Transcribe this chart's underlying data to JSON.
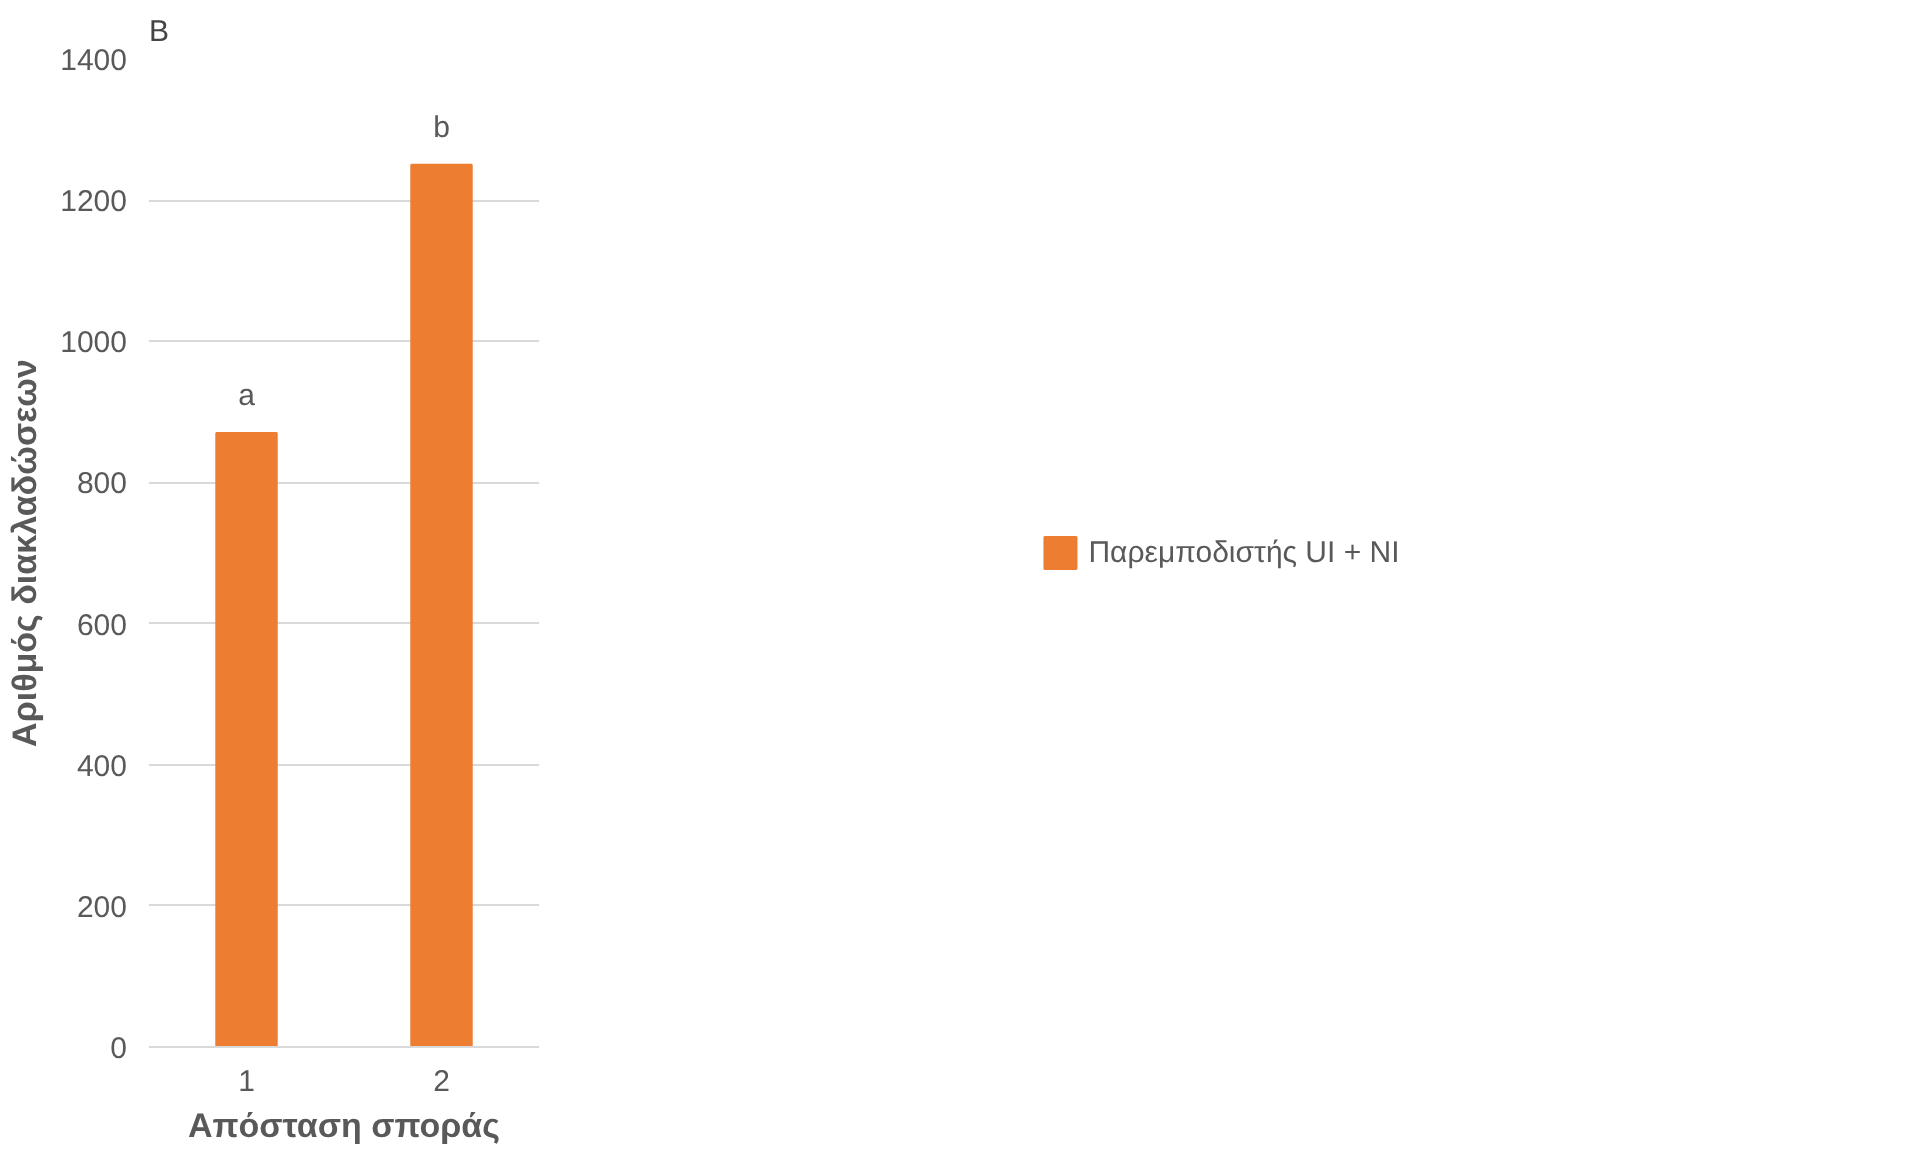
{
  "chart_data": {
    "type": "bar",
    "title": "B",
    "xlabel": "Απόσταση σποράς",
    "ylabel": "Αριθμός διακλαδώσεων",
    "categories": [
      "1",
      "2"
    ],
    "series": [
      {
        "name": "Παρεμποδιστής UI + NI",
        "color": "#ed7d31",
        "values": [
          870,
          1250
        ]
      }
    ],
    "ylim": [
      0,
      1400
    ],
    "yticks": [
      0,
      200,
      400,
      600,
      800,
      1000,
      1200,
      1400
    ],
    "grid": "y",
    "legend": "right",
    "annotations": [
      {
        "text": "a",
        "x": "1",
        "y": 870
      },
      {
        "text": "b",
        "x": "2",
        "y": 1250
      }
    ]
  }
}
